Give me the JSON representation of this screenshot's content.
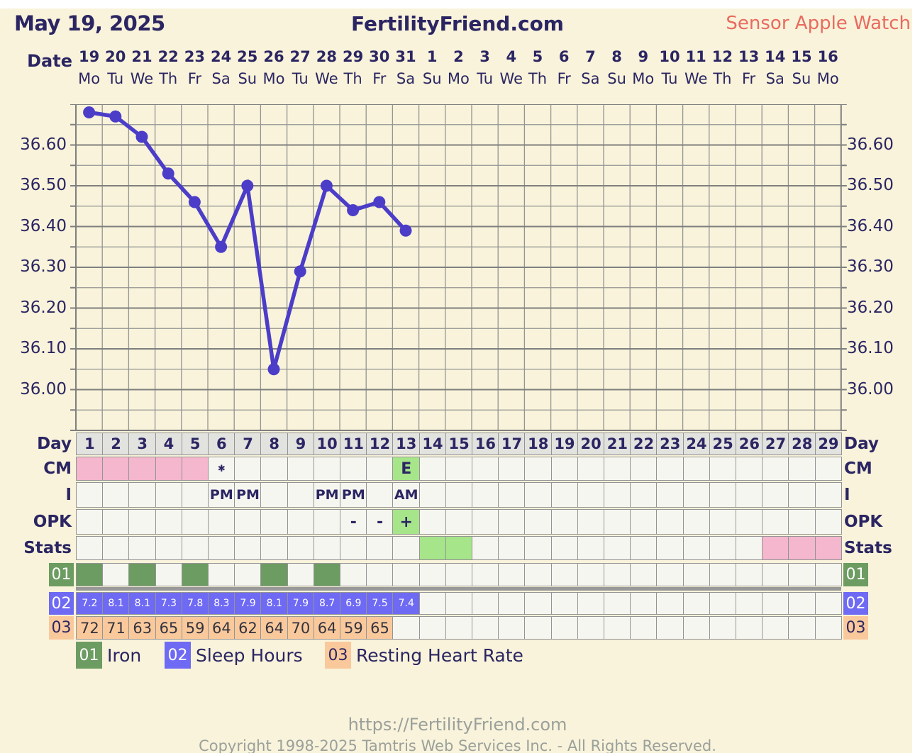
{
  "header": {
    "date_title": "May 19, 2025",
    "brand": "FertilityFriend.com",
    "sensor_label": "Sensor Apple Watch"
  },
  "calendar": {
    "axis_label": "Date",
    "dates": [
      "19",
      "20",
      "21",
      "22",
      "23",
      "24",
      "25",
      "26",
      "27",
      "28",
      "29",
      "30",
      "31",
      "1",
      "2",
      "3",
      "4",
      "5",
      "6",
      "7",
      "8",
      "9",
      "10",
      "11",
      "12",
      "13",
      "14",
      "15",
      "16"
    ],
    "weekdays": [
      "Mo",
      "Tu",
      "We",
      "Th",
      "Fr",
      "Sa",
      "Su",
      "Mo",
      "Tu",
      "We",
      "Th",
      "Fr",
      "Sa",
      "Su",
      "Mo",
      "Tu",
      "We",
      "Th",
      "Fr",
      "Sa",
      "Su",
      "Mo",
      "Tu",
      "We",
      "Th",
      "Fr",
      "Sa",
      "Su",
      "Mo"
    ]
  },
  "chart_data": {
    "type": "line",
    "x_days": [
      1,
      2,
      3,
      4,
      5,
      6,
      7,
      8,
      9,
      10,
      11,
      12,
      13
    ],
    "series": [
      {
        "name": "temperature_celsius",
        "values": [
          36.68,
          36.67,
          36.62,
          36.53,
          36.46,
          36.35,
          36.5,
          36.05,
          36.29,
          36.5,
          36.44,
          36.46,
          36.39
        ]
      }
    ],
    "yticks": [
      "36.60",
      "36.50",
      "36.40",
      "36.30",
      "36.20",
      "36.10",
      "36.00"
    ],
    "ytick_values": [
      36.6,
      36.5,
      36.4,
      36.3,
      36.2,
      36.1,
      36.0
    ],
    "ylim": [
      35.9,
      36.7
    ],
    "x_total_days": 29,
    "grid": true,
    "minor_step": 0.05,
    "legend_position": "none"
  },
  "table": {
    "day_label": "Day",
    "day_numbers": [
      "1",
      "2",
      "3",
      "4",
      "5",
      "6",
      "7",
      "8",
      "9",
      "10",
      "11",
      "12",
      "13",
      "14",
      "15",
      "16",
      "17",
      "18",
      "19",
      "20",
      "21",
      "22",
      "23",
      "24",
      "25",
      "26",
      "27",
      "28",
      "29"
    ],
    "cm": {
      "label": "CM",
      "pink_days": [
        1,
        2,
        3,
        4,
        5
      ],
      "green_days": [
        13
      ],
      "marks": {
        "6": "✱",
        "13": "E"
      }
    },
    "insemination": {
      "label": "I",
      "marks": {
        "6": "PM",
        "7": "PM",
        "10": "PM",
        "11": "PM",
        "13": "AM"
      }
    },
    "opk": {
      "label": "OPK",
      "green_days": [
        13
      ],
      "marks": {
        "11": "-",
        "12": "-",
        "13": "+"
      }
    },
    "stats": {
      "label": "Stats",
      "green_days": [
        14,
        15
      ],
      "pink_days": [
        27,
        28,
        29
      ]
    },
    "custom_rows": [
      {
        "id": "01",
        "name": "Iron",
        "filled_days": [
          1,
          3,
          5,
          8,
          10
        ]
      },
      {
        "id": "02",
        "name": "Sleep Hours",
        "values": {
          "1": "7.2",
          "2": "8.1",
          "3": "8.1",
          "4": "7.3",
          "5": "7.8",
          "6": "8.3",
          "7": "7.9",
          "8": "8.1",
          "9": "7.9",
          "10": "8.7",
          "11": "6.9",
          "12": "7.5",
          "13": "7.4"
        }
      },
      {
        "id": "03",
        "name": "Resting Heart Rate",
        "values": {
          "1": "72",
          "2": "71",
          "3": "63",
          "4": "65",
          "5": "59",
          "6": "64",
          "7": "62",
          "8": "64",
          "9": "70",
          "10": "64",
          "11": "59",
          "12": "65"
        }
      }
    ]
  },
  "legend": [
    {
      "id": "01",
      "label": "Iron"
    },
    {
      "id": "02",
      "label": "Sleep Hours"
    },
    {
      "id": "03",
      "label": "Resting Heart Rate"
    }
  ],
  "footer": {
    "url": "https://FertilityFriend.com",
    "copyright": "Copyright 1998-2025 Tamtris Web Services Inc. - All Rights Reserved."
  },
  "palette": {
    "navy": "#2b2563",
    "cream": "#f8f3da",
    "salmon": "#e96a5f",
    "line_purple": "#4b3dc8",
    "pink": "#f4b7cd",
    "light_green": "#a6e58a",
    "iron_green": "#6c9c61",
    "sleep_blue": "#6f6af3",
    "rhr_orange": "#f9c99c",
    "day_header_gray": "#e2e2df",
    "cell_bg": "#f6f6f1",
    "grid_gray": "#949494",
    "grid_dark": "#7f7f7f",
    "footer_gray": "#9ba09b"
  }
}
